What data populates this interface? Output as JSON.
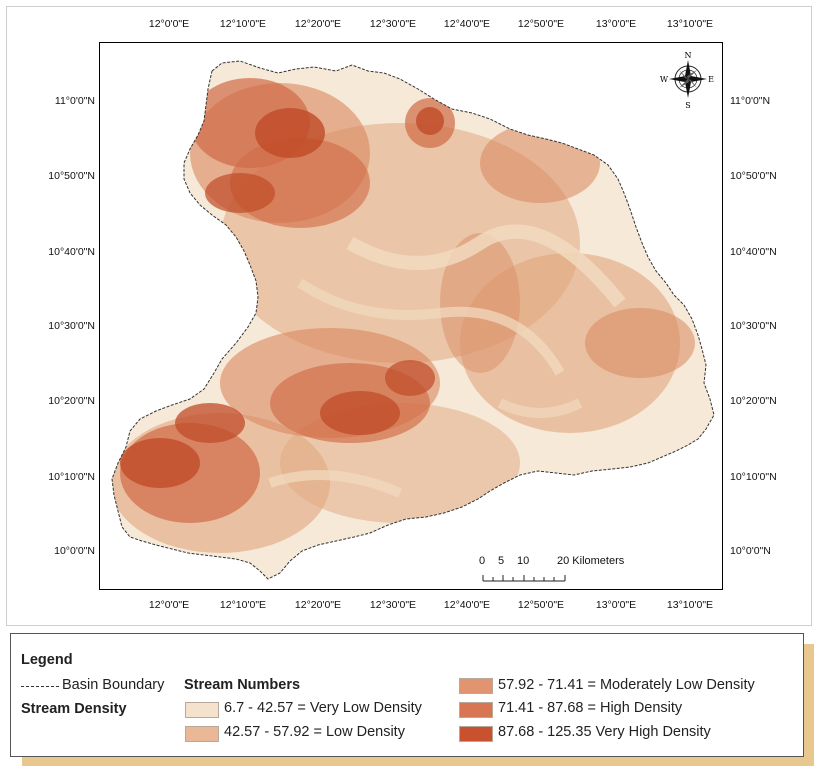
{
  "map": {
    "top_ticks": [
      "12°0'0\"E",
      "12°10'0\"E",
      "12°20'0\"E",
      "12°30'0\"E",
      "12°40'0\"E",
      "12°50'0\"E",
      "13°0'0\"E",
      "13°10'0\"E"
    ],
    "bottom_ticks": [
      "12°0'0\"E",
      "12°10'0\"E",
      "12°20'0\"E",
      "12°30'0\"E",
      "12°40'0\"E",
      "12°50'0\"E",
      "13°0'0\"E",
      "13°10'0\"E"
    ],
    "left_ticks": [
      "11°0'0\"N",
      "10°50'0\"N",
      "10°40'0\"N",
      "10°30'0\"N",
      "10°20'0\"N",
      "10°10'0\"N",
      "10°0'0\"N"
    ],
    "right_ticks": [
      "11°0'0\"N",
      "10°50'0\"N",
      "10°40'0\"N",
      "10°30'0\"N",
      "10°20'0\"N",
      "10°10'0\"N",
      "10°0'0\"N"
    ],
    "compass": {
      "n": "N",
      "s": "S",
      "e": "E",
      "w": "W"
    },
    "scale": {
      "labels": [
        "0",
        "5",
        "10",
        "20 Kilometers"
      ]
    }
  },
  "legend": {
    "title": "Legend",
    "boundary_label": "Basin Boundary",
    "stream_numbers_label": "Stream Numbers",
    "stream_density_label": "Stream Density",
    "classes": [
      {
        "label": "6.7 - 42.57 = Very Low Density",
        "color": "#f4e2cc"
      },
      {
        "label": "42.57 - 57.92 = Low Density",
        "color": "#eab896"
      },
      {
        "label": "57.92 - 71.41 = Moderately Low Density",
        "color": "#e29470"
      },
      {
        "label": "71.41 - 87.68 = High Density",
        "color": "#d87552"
      },
      {
        "label": "87.68 - 125.35 Very High Density",
        "color": "#c8522f"
      }
    ]
  }
}
